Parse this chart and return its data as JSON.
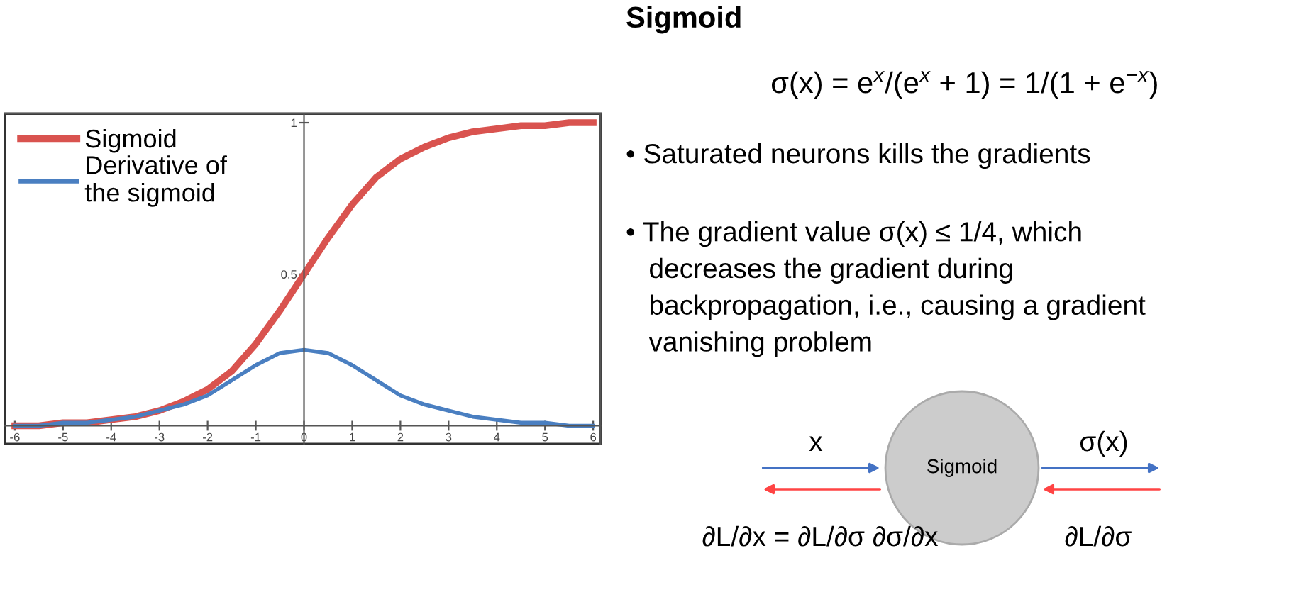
{
  "chart_data": {
    "type": "line",
    "title": "Sigmoid",
    "x": [
      -6,
      -5.5,
      -5,
      -4.5,
      -4,
      -3.5,
      -3,
      -2.5,
      -2,
      -1.5,
      -1,
      -0.5,
      0,
      0.5,
      1,
      1.5,
      2,
      2.5,
      3,
      3.5,
      4,
      4.5,
      5,
      5.5,
      6
    ],
    "series": [
      {
        "name": "Sigmoid",
        "color": "#d9534f",
        "values": [
          0.0,
          0.0,
          0.01,
          0.01,
          0.02,
          0.03,
          0.05,
          0.08,
          0.12,
          0.18,
          0.27,
          0.38,
          0.5,
          0.62,
          0.73,
          0.82,
          0.88,
          0.92,
          0.95,
          0.97,
          0.98,
          0.99,
          0.99,
          1.0,
          1.0
        ]
      },
      {
        "name": "Derivative of\nthe sigmoid",
        "color": "#4a7fc1",
        "values": [
          0.0,
          0.0,
          0.01,
          0.01,
          0.02,
          0.03,
          0.05,
          0.07,
          0.1,
          0.15,
          0.2,
          0.24,
          0.25,
          0.24,
          0.2,
          0.15,
          0.1,
          0.07,
          0.05,
          0.03,
          0.02,
          0.01,
          0.01,
          0.0,
          0.0
        ]
      }
    ],
    "xlim": [
      -6.2,
      6.15
    ],
    "ylim": [
      -0.06,
      1.03
    ],
    "xticks": [
      -6,
      -5,
      -4,
      -3,
      -2,
      -1,
      0,
      1,
      2,
      3,
      4,
      5,
      6
    ],
    "yticks": [
      0.5,
      1
    ],
    "legend": "top left",
    "annotations": [
      "σ(x) = e$^{x}$/(e$^{x}$ + 1) = 1/(1 + e$^{−x}$)",
      "• Saturated neurons kills the gradients",
      "• The gradient value σ(x) ≤ 1/4, which\n   decreases the gradient during\n   backpropagation, i.e., causing a gradient\n   vanishing problem",
      "x",
      "Sigmoid",
      "σ(x)",
      "∂L/∂x = ∂L/∂σ ∂σ/∂x",
      "∂L/∂σ"
    ]
  }
}
